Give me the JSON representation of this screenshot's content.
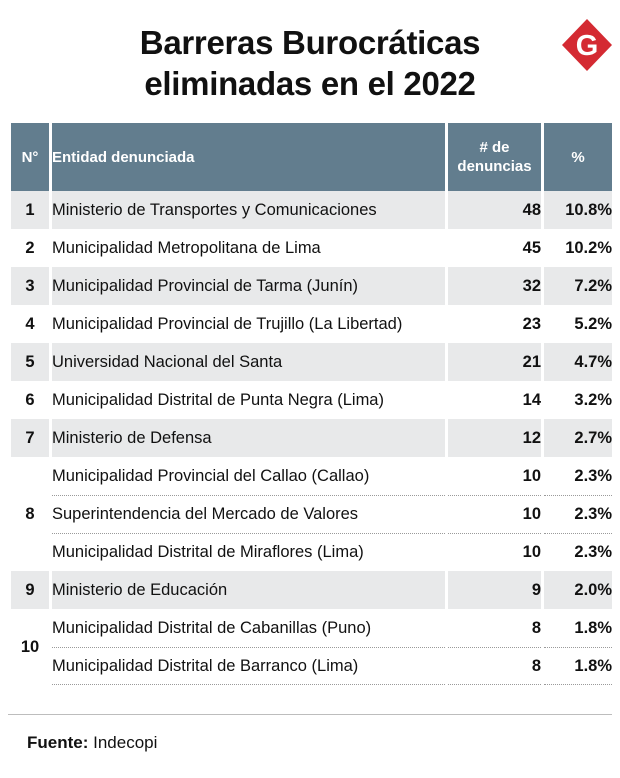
{
  "title_line1": "Barreras Burocráticas",
  "title_line2": "eliminadas en el 2022",
  "logo_letter": "G",
  "colors": {
    "header": "#627d8e",
    "logo": "#d42a32",
    "stripe": "#e8e9ea"
  },
  "chart_data": {
    "type": "table",
    "columns": [
      "N°",
      "Entidad denunciada",
      "# de denuncias",
      "%"
    ],
    "rows": [
      {
        "rank": "1",
        "entity": "Ministerio de Transportes y Comunicaciones",
        "count": "48",
        "pct": "10.8%"
      },
      {
        "rank": "2",
        "entity": "Municipalidad Metropolitana de Lima",
        "count": "45",
        "pct": "10.2%"
      },
      {
        "rank": "3",
        "entity": "Municipalidad Provincial de Tarma (Junín)",
        "count": "32",
        "pct": "7.2%"
      },
      {
        "rank": "4",
        "entity": "Municipalidad Provincial de Trujillo (La Libertad)",
        "count": "23",
        "pct": "5.2%"
      },
      {
        "rank": "5",
        "entity": "Universidad Nacional del Santa",
        "count": "21",
        "pct": "4.7%"
      },
      {
        "rank": "6",
        "entity": "Municipalidad Distrital de Punta Negra (Lima)",
        "count": "14",
        "pct": "3.2%"
      },
      {
        "rank": "7",
        "entity": "Ministerio de Defensa",
        "count": "12",
        "pct": "2.7%"
      },
      {
        "rank": "8",
        "entity": "Municipalidad Provincial del Callao (Callao)",
        "count": "10",
        "pct": "2.3%"
      },
      {
        "rank": "8",
        "entity": "Superintendencia del Mercado de Valores",
        "count": "10",
        "pct": "2.3%"
      },
      {
        "rank": "8",
        "entity": "Municipalidad Distrital de Miraflores (Lima)",
        "count": "10",
        "pct": "2.3%"
      },
      {
        "rank": "9",
        "entity": "Ministerio de Educación",
        "count": "9",
        "pct": "2.0%"
      },
      {
        "rank": "10",
        "entity": "Municipalidad Distrital de Cabanillas (Puno)",
        "count": "8",
        "pct": "1.8%"
      },
      {
        "rank": "10",
        "entity": "Municipalidad Distrital de Barranco (Lima)",
        "count": "8",
        "pct": "1.8%"
      }
    ]
  },
  "source_label": "Fuente:",
  "source_value": "Indecopi"
}
